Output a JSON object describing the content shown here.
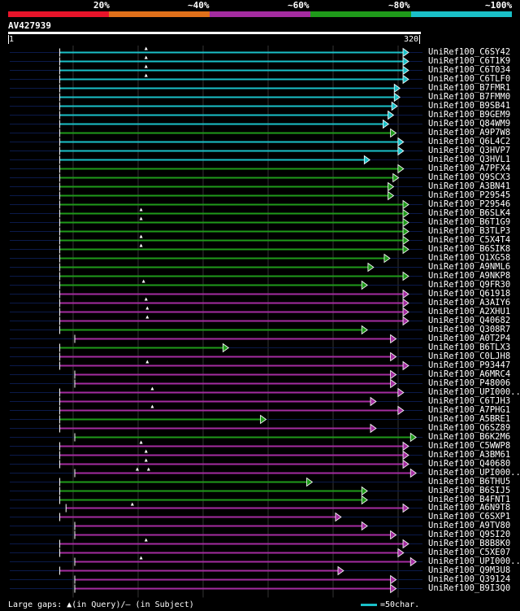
{
  "title": "AV427939",
  "colors": {
    "red": "#e8142a",
    "orange": "#e0701a",
    "purple": "#a42ca0",
    "green": "#1f9a1a",
    "cyan": "#1ac0c8",
    "track": "#0b1a4a",
    "grid": "#333333"
  },
  "scale": {
    "segments": [
      "red",
      "orange",
      "purple",
      "green",
      "cyan"
    ],
    "labels": [
      "20%",
      "~40%",
      "~60%",
      "~80%",
      "~100%"
    ]
  },
  "ruler": {
    "start": "1",
    "end": "320",
    "length": 320
  },
  "footer": {
    "gaps_prefix": "Large gaps: ",
    "gaps_query": "▲(in Query)",
    "gaps_subject": "/— (in Subject)",
    "legend": "=50char."
  },
  "chart_data": {
    "type": "alignment-overview",
    "query_length": 320,
    "hits": [
      {
        "name": "UniRef100_C6SY42",
        "start": 41,
        "end": 320,
        "color": "cyan",
        "gaps": [
          110
        ]
      },
      {
        "name": "UniRef100_C6T1K9",
        "start": 41,
        "end": 320,
        "color": "cyan",
        "gaps": [
          110
        ]
      },
      {
        "name": "UniRef100_C6T034",
        "start": 41,
        "end": 320,
        "color": "cyan",
        "gaps": [
          110
        ]
      },
      {
        "name": "UniRef100_C6TLF0",
        "start": 41,
        "end": 320,
        "color": "cyan",
        "gaps": [
          110
        ]
      },
      {
        "name": "UniRef100_B7FMR1",
        "start": 41,
        "end": 313,
        "color": "cyan",
        "gaps": []
      },
      {
        "name": "UniRef100_B7FMM0",
        "start": 41,
        "end": 313,
        "color": "cyan",
        "gaps": []
      },
      {
        "name": "UniRef100_B9SB41",
        "start": 41,
        "end": 311,
        "color": "cyan",
        "gaps": []
      },
      {
        "name": "UniRef100_B9GEM9",
        "start": 41,
        "end": 308,
        "color": "cyan",
        "gaps": []
      },
      {
        "name": "UniRef100_Q84WM9",
        "start": 41,
        "end": 304,
        "color": "cyan",
        "gaps": []
      },
      {
        "name": "UniRef100_A9P7W8",
        "start": 41,
        "end": 310,
        "color": "green",
        "gaps": []
      },
      {
        "name": "UniRef100_Q6L4C2",
        "start": 41,
        "end": 316,
        "color": "cyan",
        "gaps": []
      },
      {
        "name": "UniRef100_Q3HVP7",
        "start": 41,
        "end": 316,
        "color": "cyan",
        "gaps": []
      },
      {
        "name": "UniRef100_Q3HVL1",
        "start": 41,
        "end": 289,
        "color": "cyan",
        "gaps": []
      },
      {
        "name": "UniRef100_A7PFX4",
        "start": 41,
        "end": 316,
        "color": "green",
        "gaps": []
      },
      {
        "name": "UniRef100_Q9SCX3",
        "start": 41,
        "end": 312,
        "color": "green",
        "gaps": []
      },
      {
        "name": "UniRef100_A3BN41",
        "start": 41,
        "end": 308,
        "color": "green",
        "gaps": []
      },
      {
        "name": "UniRef100_P29545",
        "start": 41,
        "end": 308,
        "color": "green",
        "gaps": []
      },
      {
        "name": "UniRef100_P29546",
        "start": 41,
        "end": 320,
        "color": "green",
        "gaps": []
      },
      {
        "name": "UniRef100_B6SLK4",
        "start": 41,
        "end": 320,
        "color": "green",
        "gaps": [
          106
        ]
      },
      {
        "name": "UniRef100_B6T1G9",
        "start": 41,
        "end": 320,
        "color": "green",
        "gaps": [
          106
        ]
      },
      {
        "name": "UniRef100_B3TLP3",
        "start": 41,
        "end": 320,
        "color": "green",
        "gaps": []
      },
      {
        "name": "UniRef100_C5X4T4",
        "start": 41,
        "end": 320,
        "color": "green",
        "gaps": [
          106
        ]
      },
      {
        "name": "UniRef100_B6SIK8",
        "start": 41,
        "end": 320,
        "color": "green",
        "gaps": [
          106
        ]
      },
      {
        "name": "UniRef100_Q1XG58",
        "start": 41,
        "end": 305,
        "color": "green",
        "gaps": []
      },
      {
        "name": "UniRef100_A9NML6",
        "start": 41,
        "end": 292,
        "color": "green",
        "gaps": []
      },
      {
        "name": "UniRef100_A9NKP8",
        "start": 41,
        "end": 320,
        "color": "green",
        "gaps": []
      },
      {
        "name": "UniRef100_Q9FR30",
        "start": 41,
        "end": 287,
        "color": "green",
        "gaps": [
          108
        ]
      },
      {
        "name": "UniRef100_Q61918",
        "start": 41,
        "end": 320,
        "color": "purple",
        "gaps": []
      },
      {
        "name": "UniRef100_A3AIY6",
        "start": 41,
        "end": 320,
        "color": "purple",
        "gaps": [
          110
        ]
      },
      {
        "name": "UniRef100_A2XHU1",
        "start": 41,
        "end": 320,
        "color": "purple",
        "gaps": [
          111
        ]
      },
      {
        "name": "UniRef100_Q40682",
        "start": 41,
        "end": 320,
        "color": "purple",
        "gaps": [
          111
        ]
      },
      {
        "name": "UniRef100_Q308R7",
        "start": 41,
        "end": 287,
        "color": "green",
        "gaps": []
      },
      {
        "name": "UniRef100_A0T2P4",
        "start": 53,
        "end": 310,
        "color": "purple",
        "gaps": []
      },
      {
        "name": "UniRef100_B6TLX3",
        "start": 41,
        "end": 176,
        "color": "green",
        "gaps": []
      },
      {
        "name": "UniRef100_C0LJH8",
        "start": 41,
        "end": 310,
        "color": "purple",
        "gaps": []
      },
      {
        "name": "UniRef100_P93447",
        "start": 41,
        "end": 320,
        "color": "purple",
        "gaps": [
          111
        ]
      },
      {
        "name": "UniRef100_A6MRC4",
        "start": 53,
        "end": 310,
        "color": "purple",
        "gaps": []
      },
      {
        "name": "UniRef100_P48006",
        "start": 53,
        "end": 310,
        "color": "purple",
        "gaps": []
      },
      {
        "name": "UniRef100_UPI000...",
        "start": 41,
        "end": 316,
        "color": "purple",
        "gaps": [
          115
        ]
      },
      {
        "name": "UniRef100_C6TJH3",
        "start": 41,
        "end": 294,
        "color": "purple",
        "gaps": []
      },
      {
        "name": "UniRef100_A7PHG1",
        "start": 41,
        "end": 316,
        "color": "purple",
        "gaps": [
          115
        ]
      },
      {
        "name": "UniRef100_A5BRE1",
        "start": 41,
        "end": 206,
        "color": "green",
        "gaps": []
      },
      {
        "name": "UniRef100_Q6SZ89",
        "start": 41,
        "end": 294,
        "color": "purple",
        "gaps": []
      },
      {
        "name": "UniRef100_B6K2M6",
        "start": 53,
        "end": 326,
        "color": "green",
        "gaps": []
      },
      {
        "name": "UniRef100_C5WWP8",
        "start": 41,
        "end": 320,
        "color": "purple",
        "gaps": [
          106
        ]
      },
      {
        "name": "UniRef100_A3BM61",
        "start": 41,
        "end": 320,
        "color": "purple",
        "gaps": [
          110
        ]
      },
      {
        "name": "UniRef100_Q40680",
        "start": 41,
        "end": 320,
        "color": "purple",
        "gaps": [
          110
        ]
      },
      {
        "name": "UniRef100_UPI000...",
        "start": 53,
        "end": 326,
        "color": "purple",
        "gaps": [
          103,
          112
        ]
      },
      {
        "name": "UniRef100_B6THU5",
        "start": 41,
        "end": 243,
        "color": "green",
        "gaps": []
      },
      {
        "name": "UniRef100_B6SIJ5",
        "start": 41,
        "end": 287,
        "color": "green",
        "gaps": []
      },
      {
        "name": "UniRef100_B4FNT1",
        "start": 41,
        "end": 287,
        "color": "green",
        "gaps": []
      },
      {
        "name": "UniRef100_A6N9T8",
        "start": 46,
        "end": 320,
        "color": "purple",
        "gaps": [
          99
        ]
      },
      {
        "name": "UniRef100_C6SXP1",
        "start": 41,
        "end": 266,
        "color": "purple",
        "gaps": []
      },
      {
        "name": "UniRef100_A9TV80",
        "start": 53,
        "end": 287,
        "color": "purple",
        "gaps": []
      },
      {
        "name": "UniRef100_Q9SI20",
        "start": 53,
        "end": 310,
        "color": "purple",
        "gaps": []
      },
      {
        "name": "UniRef100_B8B8K0",
        "start": 41,
        "end": 320,
        "color": "purple",
        "gaps": [
          110
        ]
      },
      {
        "name": "UniRef100_C5XE07",
        "start": 41,
        "end": 316,
        "color": "purple",
        "gaps": []
      },
      {
        "name": "UniRef100_UPI000...",
        "start": 53,
        "end": 326,
        "color": "purple",
        "gaps": [
          106
        ]
      },
      {
        "name": "UniRef100_Q9M3U8",
        "start": 41,
        "end": 268,
        "color": "purple",
        "gaps": []
      },
      {
        "name": "UniRef100_Q39124",
        "start": 53,
        "end": 310,
        "color": "purple",
        "gaps": []
      },
      {
        "name": "UniRef100_B9I3Q0",
        "start": 53,
        "end": 310,
        "color": "purple",
        "gaps": []
      }
    ]
  }
}
